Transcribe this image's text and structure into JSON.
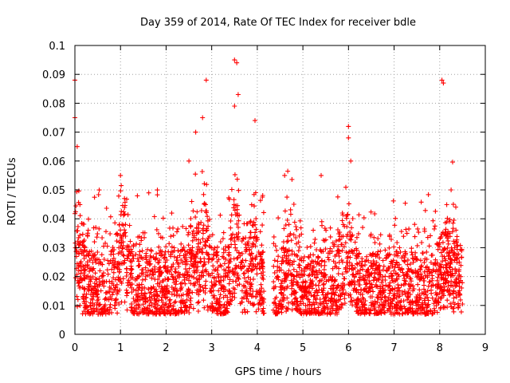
{
  "chart_data": {
    "type": "scatter",
    "title": "Day 359 of 2014, Rate Of TEC Index for receiver bdle",
    "xlabel": "GPS time / hours",
    "ylabel": "ROTI / TECUs",
    "xlim": [
      0,
      9
    ],
    "ylim": [
      0,
      0.1
    ],
    "x_ticks": [
      "0",
      "1",
      "2",
      "3",
      "4",
      "5",
      "6",
      "7",
      "8",
      "9"
    ],
    "y_ticks": [
      "0",
      "0.01",
      "0.02",
      "0.03",
      "0.04",
      "0.05",
      "0.06",
      "0.07",
      "0.08",
      "0.09",
      "0.1"
    ],
    "grid": true,
    "marker": "+",
    "color": "#ff0000",
    "data_gap_hours": [
      4.15,
      4.35
    ],
    "series": [
      {
        "name": "ROTI",
        "notable_peaks": [
          {
            "x": 0.0,
            "y": 0.088
          },
          {
            "x": 0.0,
            "y": 0.075
          },
          {
            "x": 0.05,
            "y": 0.065
          },
          {
            "x": 1.0,
            "y": 0.055
          },
          {
            "x": 2.5,
            "y": 0.06
          },
          {
            "x": 2.65,
            "y": 0.07
          },
          {
            "x": 2.8,
            "y": 0.075
          },
          {
            "x": 2.88,
            "y": 0.088
          },
          {
            "x": 3.5,
            "y": 0.095
          },
          {
            "x": 3.55,
            "y": 0.094
          },
          {
            "x": 3.58,
            "y": 0.083
          },
          {
            "x": 3.5,
            "y": 0.079
          },
          {
            "x": 3.95,
            "y": 0.074
          },
          {
            "x": 4.6,
            "y": 0.055
          },
          {
            "x": 5.4,
            "y": 0.055
          },
          {
            "x": 6.0,
            "y": 0.072
          },
          {
            "x": 6.0,
            "y": 0.068
          },
          {
            "x": 6.05,
            "y": 0.06
          },
          {
            "x": 8.05,
            "y": 0.088
          },
          {
            "x": 8.08,
            "y": 0.087
          },
          {
            "x": 8.25,
            "y": 0.05
          },
          {
            "x": 8.3,
            "y": 0.045
          }
        ]
      }
    ]
  }
}
